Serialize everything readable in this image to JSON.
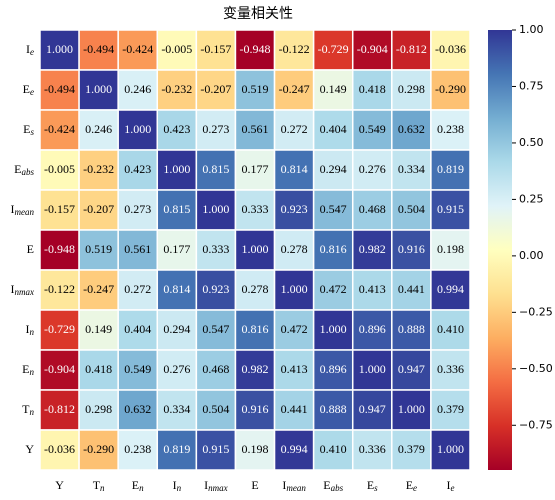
{
  "chart_data": {
    "type": "heatmap",
    "title": "变量相关性",
    "cmap": "RdYlBu",
    "rows": [
      {
        "main": "I",
        "sub": "e"
      },
      {
        "main": "E",
        "sub": "e"
      },
      {
        "main": "E",
        "sub": "s"
      },
      {
        "main": "E",
        "sub": "abs"
      },
      {
        "main": "I",
        "sub": "mean"
      },
      {
        "main": "E"
      },
      {
        "main": "I",
        "sub": "nmax"
      },
      {
        "main": "I",
        "sub": "n"
      },
      {
        "main": "E",
        "sub": "n"
      },
      {
        "main": "T",
        "sub": "n"
      },
      {
        "main": "Y"
      }
    ],
    "columns": [
      {
        "main": "Y"
      },
      {
        "main": "T",
        "sub": "n"
      },
      {
        "main": "E",
        "sub": "n"
      },
      {
        "main": "I",
        "sub": "n"
      },
      {
        "main": "I",
        "sub": "nmax"
      },
      {
        "main": "E"
      },
      {
        "main": "I",
        "sub": "mean"
      },
      {
        "main": "E",
        "sub": "abs"
      },
      {
        "main": "E",
        "sub": "s"
      },
      {
        "main": "E",
        "sub": "e"
      },
      {
        "main": "I",
        "sub": "e"
      }
    ],
    "values": [
      [
        1.0,
        -0.494,
        -0.424,
        -0.005,
        -0.157,
        -0.948,
        -0.122,
        -0.729,
        -0.904,
        -0.812,
        -0.036
      ],
      [
        -0.494,
        1.0,
        0.246,
        -0.232,
        -0.207,
        0.519,
        -0.247,
        0.149,
        0.418,
        0.298,
        -0.29
      ],
      [
        -0.424,
        0.246,
        1.0,
        0.423,
        0.273,
        0.561,
        0.272,
        0.404,
        0.549,
        0.632,
        0.238
      ],
      [
        -0.005,
        -0.232,
        0.423,
        1.0,
        0.815,
        0.177,
        0.814,
        0.294,
        0.276,
        0.334,
        0.819
      ],
      [
        -0.157,
        -0.207,
        0.273,
        0.815,
        1.0,
        0.333,
        0.923,
        0.547,
        0.468,
        0.504,
        0.915
      ],
      [
        -0.948,
        0.519,
        0.561,
        0.177,
        0.333,
        1.0,
        0.278,
        0.816,
        0.982,
        0.916,
        0.198
      ],
      [
        -0.122,
        -0.247,
        0.272,
        0.814,
        0.923,
        0.278,
        1.0,
        0.472,
        0.413,
        0.441,
        0.994
      ],
      [
        -0.729,
        0.149,
        0.404,
        0.294,
        0.547,
        0.816,
        0.472,
        1.0,
        0.896,
        0.888,
        0.41
      ],
      [
        -0.904,
        0.418,
        0.549,
        0.276,
        0.468,
        0.982,
        0.413,
        0.896,
        1.0,
        0.947,
        0.336
      ],
      [
        -0.812,
        0.298,
        0.632,
        0.334,
        0.504,
        0.916,
        0.441,
        0.888,
        0.947,
        1.0,
        0.379
      ],
      [
        -0.036,
        -0.29,
        0.238,
        0.819,
        0.915,
        0.198,
        0.994,
        0.41,
        0.336,
        0.379,
        1.0
      ]
    ],
    "value_labels": [
      [
        "1.000",
        "-0.494",
        "-0.424",
        "-0.005",
        "-0.157",
        "-0.948",
        "-0.122",
        "-0.729",
        "-0.904",
        "-0.812",
        "-0.036"
      ],
      [
        "-0.494",
        "1.000",
        "0.246",
        "-0.232",
        "-0.207",
        "0.519",
        "-0.247",
        "0.149",
        "0.418",
        "0.298",
        "-0.290"
      ],
      [
        "-0.424",
        "0.246",
        "1.000",
        "0.423",
        "0.273",
        "0.561",
        "0.272",
        "0.404",
        "0.549",
        "0.632",
        "0.238"
      ],
      [
        "-0.005",
        "-0.232",
        "0.423",
        "1.000",
        "0.815",
        "0.177",
        "0.814",
        "0.294",
        "0.276",
        "0.334",
        "0.819"
      ],
      [
        "-0.157",
        "-0.207",
        "0.273",
        "0.815",
        "1.000",
        "0.333",
        "0.923",
        "0.547",
        "0.468",
        "0.504",
        "0.915"
      ],
      [
        "-0.948",
        "0.519",
        "0.561",
        "0.177",
        "0.333",
        "1.000",
        "0.278",
        "0.816",
        "0.982",
        "0.916",
        "0.198"
      ],
      [
        "-0.122",
        "-0.247",
        "0.272",
        "0.814",
        "0.923",
        "0.278",
        "1.000",
        "0.472",
        "0.413",
        "0.441",
        "0.994"
      ],
      [
        "-0.729",
        "0.149",
        "0.404",
        "0.294",
        "0.547",
        "0.816",
        "0.472",
        "1.000",
        "0.896",
        "0.888",
        "0.410"
      ],
      [
        "-0.904",
        "0.418",
        "0.549",
        "0.276",
        "0.468",
        "0.982",
        "0.413",
        "0.896",
        "1.000",
        "0.947",
        "0.336"
      ],
      [
        "-0.812",
        "0.298",
        "0.632",
        "0.334",
        "0.504",
        "0.916",
        "0.441",
        "0.888",
        "0.947",
        "1.000",
        "0.379"
      ],
      [
        "-0.036",
        "-0.290",
        "0.238",
        "0.819",
        "0.915",
        "0.198",
        "0.994",
        "0.410",
        "0.336",
        "0.379",
        "1.000"
      ]
    ],
    "clim": [
      -0.948,
      1.0
    ],
    "cbar_ticks": [
      {
        "value": 1.0,
        "label": "1.00"
      },
      {
        "value": 0.75,
        "label": "0.75"
      },
      {
        "value": 0.5,
        "label": "0.50"
      },
      {
        "value": 0.25,
        "label": "0.25"
      },
      {
        "value": 0.0,
        "label": "0.00"
      },
      {
        "value": -0.25,
        "label": "−0.25"
      },
      {
        "value": -0.5,
        "label": "−0.50"
      },
      {
        "value": -0.75,
        "label": "−0.75"
      }
    ]
  }
}
